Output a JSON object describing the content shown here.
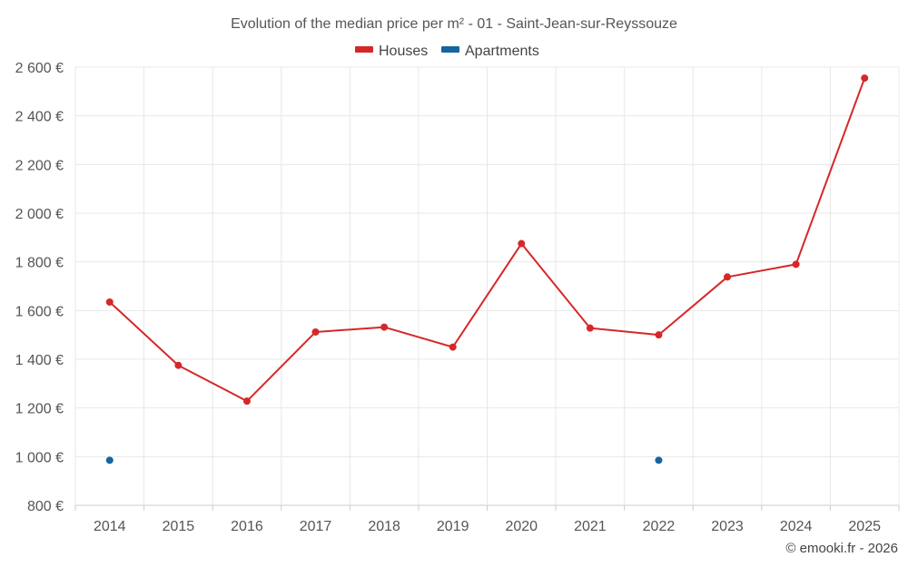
{
  "chart_data": {
    "type": "line",
    "title": "Evolution of the median price per m² - 01 - Saint-Jean-sur-Reyssouze",
    "categories": [
      "2014",
      "2015",
      "2016",
      "2017",
      "2018",
      "2019",
      "2020",
      "2021",
      "2022",
      "2023",
      "2024",
      "2025"
    ],
    "ylim": [
      800,
      2600
    ],
    "yticks": [
      800,
      1000,
      1200,
      1400,
      1600,
      1800,
      2000,
      2200,
      2400,
      2600
    ],
    "ytick_labels": [
      "800 €",
      "1 000 €",
      "1 200 €",
      "1 400 €",
      "1 600 €",
      "1 800 €",
      "2 000 €",
      "2 200 €",
      "2 400 €",
      "2 600 €"
    ],
    "series": [
      {
        "name": "Houses",
        "color": "#d62728",
        "values": [
          1635,
          1375,
          1228,
          1512,
          1532,
          1450,
          1875,
          1528,
          1500,
          1738,
          1790,
          2555
        ]
      },
      {
        "name": "Apartments",
        "color": "#1565a0",
        "values": [
          985,
          null,
          null,
          null,
          null,
          null,
          null,
          null,
          985,
          null,
          null,
          null
        ]
      }
    ],
    "legend_position": "top-center",
    "grid": true
  },
  "credit": "© emooki.fr - 2026"
}
